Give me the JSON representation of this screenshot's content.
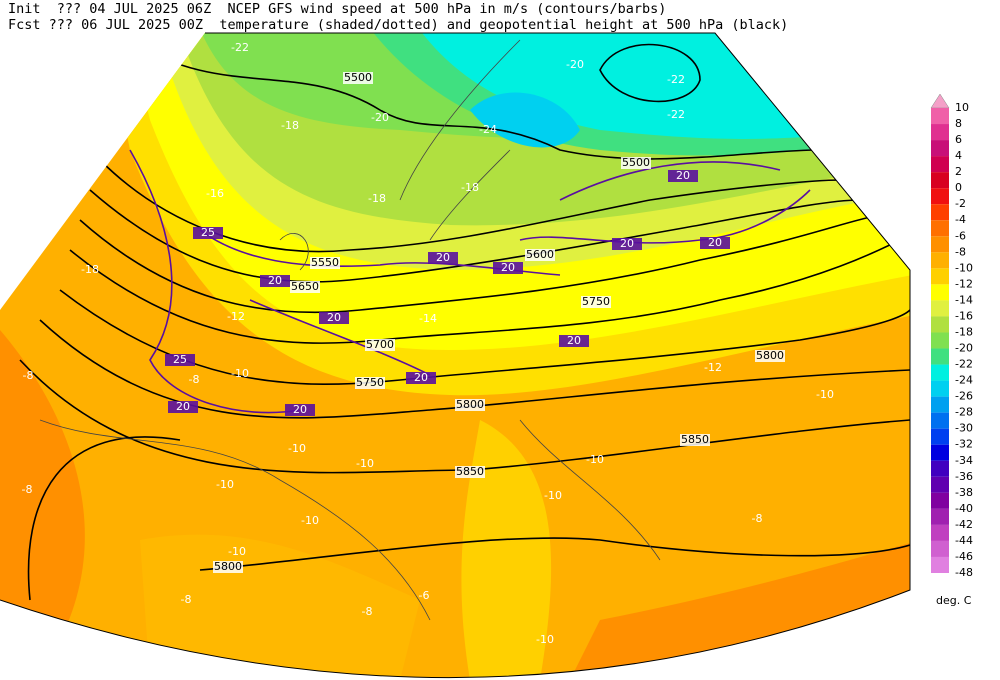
{
  "header": {
    "line1": "Init  ??? 04 JUL 2025 06Z  NCEP GFS wind speed at 500 hPa in m/s (contours/barbs)",
    "line2": "Fcst ??? 06 JUL 2025 00Z  temperature (shaded/dotted) and geopotential height at 500 hPa (black)"
  },
  "colorbar": {
    "levels": [
      10,
      8,
      6,
      4,
      2,
      0,
      -2,
      -4,
      -6,
      -8,
      -10,
      -12,
      -14,
      -16,
      -18,
      -20,
      -22,
      -24,
      -26,
      -28,
      -30,
      -32,
      -34,
      -36,
      -38,
      -40,
      -42,
      -44,
      -46,
      -48
    ],
    "colors": [
      "#f4a0c8",
      "#f060a8",
      "#e03090",
      "#c81078",
      "#d00050",
      "#d80020",
      "#f01010",
      "#ff4000",
      "#ff7000",
      "#ff9000",
      "#ffb000",
      "#ffd000",
      "#ffff00",
      "#e0f040",
      "#b0e040",
      "#80e050",
      "#40e080",
      "#00f0e0",
      "#00d0f0",
      "#00a0f0",
      "#0070f0",
      "#0040f0",
      "#0000e0",
      "#4000c0",
      "#6000b0",
      "#8000a0",
      "#a020b0",
      "#c040c0",
      "#d060d0",
      "#e080e0"
    ],
    "unit": "deg. C"
  },
  "map_labels": {
    "height": [
      5500,
      5500,
      5550,
      5600,
      5650,
      5700,
      5750,
      5750,
      5800,
      5800,
      5850,
      5850,
      5800
    ],
    "temperature": [
      -22,
      -20,
      -22,
      -22,
      -20,
      -24,
      -18,
      -16,
      -18,
      -18,
      -18,
      -12,
      -14,
      -12,
      -10,
      -8,
      -10,
      -10,
      -10,
      -10,
      -10,
      -10,
      -8,
      -10,
      -8,
      -8,
      -8,
      -8,
      -10,
      -10,
      -6
    ],
    "wind": [
      25,
      20,
      20,
      25,
      20,
      20,
      20,
      20,
      20,
      20,
      20,
      20,
      20
    ]
  }
}
